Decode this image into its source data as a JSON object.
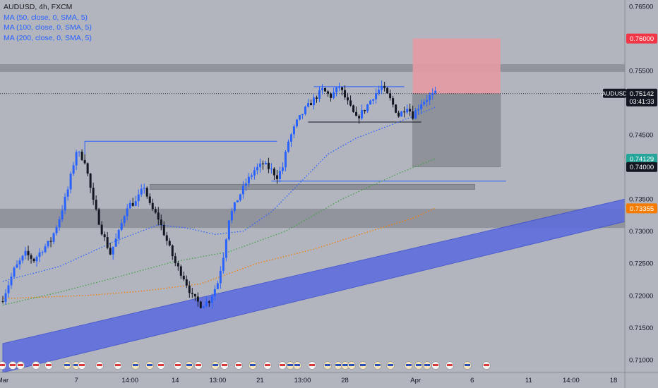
{
  "header": {
    "title": "AUDUSD, 4h, FXCM",
    "indicators": [
      "MA (50, close, 0, SMA, 5)",
      "MA (100, close, 0, SMA, 5)",
      "MA (200, close, 0, SMA, 5)"
    ]
  },
  "colors": {
    "background": "#b2b5be",
    "up_candle": "#2962ff",
    "down_candle": "#131722",
    "ma50": "#2962ff",
    "ma100": "#43a047",
    "ma200": "#f57c00",
    "channel": "#5b6be0",
    "stop_zone": "#e59aa3",
    "target_zone": "#8f9299",
    "zone_band": "#8d9098",
    "axis_text": "#131722"
  },
  "chart_data": {
    "type": "candlestick",
    "symbol": "AUDUSD",
    "interval": "4h",
    "source": "FXCM",
    "ylim": [
      0.708,
      0.766
    ],
    "y_ticks": [
      "0.76500",
      "0.76000",
      "0.75500",
      "0.75000",
      "0.74500",
      "0.74000",
      "0.73500",
      "0.73000",
      "0.72500",
      "0.72000",
      "0.71500",
      "0.71000"
    ],
    "x_ticks": [
      "Mar",
      "7",
      "14:00",
      "14",
      "13:00",
      "21",
      "13:00",
      "28",
      "Apr",
      "6",
      "11",
      "14:00",
      "18"
    ],
    "x_tick_index": [
      0,
      26,
      45,
      61,
      76,
      91,
      106,
      121,
      146,
      166,
      186,
      201,
      216
    ],
    "bars_total": 220,
    "current_price": "0.75142",
    "countdown": "03:41:33",
    "price_labels": [
      {
        "text": "0.76000",
        "value": 0.76,
        "bg": "#f23645"
      },
      {
        "text": "0.74129",
        "value": 0.74129,
        "bg": "#26a69a"
      },
      {
        "text": "0.74000",
        "value": 0.74,
        "bg": "#131722"
      },
      {
        "text": "0.73355",
        "value": 0.73355,
        "bg": "#f57c00"
      }
    ],
    "close_path": [
      [
        0,
        0.7195
      ],
      [
        4,
        0.724
      ],
      [
        8,
        0.7265
      ],
      [
        11,
        0.7255
      ],
      [
        14,
        0.7272
      ],
      [
        17,
        0.7285
      ],
      [
        20,
        0.732
      ],
      [
        23,
        0.7365
      ],
      [
        26,
        0.7425
      ],
      [
        29,
        0.741
      ],
      [
        32,
        0.7345
      ],
      [
        35,
        0.73
      ],
      [
        38,
        0.7265
      ],
      [
        41,
        0.7298
      ],
      [
        44,
        0.734
      ],
      [
        47,
        0.7345
      ],
      [
        50,
        0.737
      ],
      [
        52,
        0.734
      ],
      [
        55,
        0.732
      ],
      [
        58,
        0.7285
      ],
      [
        61,
        0.725
      ],
      [
        64,
        0.7228
      ],
      [
        67,
        0.7198
      ],
      [
        70,
        0.7185
      ],
      [
        73,
        0.7192
      ],
      [
        76,
        0.722
      ],
      [
        78,
        0.7262
      ],
      [
        80,
        0.732
      ],
      [
        83,
        0.735
      ],
      [
        86,
        0.7375
      ],
      [
        89,
        0.7395
      ],
      [
        92,
        0.7405
      ],
      [
        95,
        0.7395
      ],
      [
        97,
        0.7385
      ],
      [
        99,
        0.74
      ],
      [
        101,
        0.744
      ],
      [
        104,
        0.747
      ],
      [
        107,
        0.749
      ],
      [
        110,
        0.7505
      ],
      [
        113,
        0.752
      ],
      [
        116,
        0.751
      ],
      [
        119,
        0.7525
      ],
      [
        122,
        0.75
      ],
      [
        125,
        0.7475
      ],
      [
        128,
        0.749
      ],
      [
        131,
        0.751
      ],
      [
        134,
        0.7525
      ],
      [
        137,
        0.7505
      ],
      [
        140,
        0.748
      ],
      [
        143,
        0.7495
      ],
      [
        145,
        0.748
      ],
      [
        148,
        0.75
      ],
      [
        151,
        0.751
      ],
      [
        153,
        0.7514
      ]
    ],
    "ma50": [
      [
        0,
        0.7222
      ],
      [
        20,
        0.7245
      ],
      [
        40,
        0.7285
      ],
      [
        55,
        0.731
      ],
      [
        65,
        0.7305
      ],
      [
        75,
        0.7295
      ],
      [
        85,
        0.73
      ],
      [
        95,
        0.733
      ],
      [
        105,
        0.7375
      ],
      [
        115,
        0.742
      ],
      [
        125,
        0.7445
      ],
      [
        140,
        0.747
      ],
      [
        153,
        0.7493
      ]
    ],
    "ma100": [
      [
        0,
        0.7185
      ],
      [
        20,
        0.7205
      ],
      [
        40,
        0.7228
      ],
      [
        60,
        0.7252
      ],
      [
        80,
        0.7268
      ],
      [
        100,
        0.73
      ],
      [
        120,
        0.735
      ],
      [
        140,
        0.739
      ],
      [
        153,
        0.7413
      ]
    ],
    "ma200": [
      [
        0,
        0.7195
      ],
      [
        30,
        0.72
      ],
      [
        50,
        0.7207
      ],
      [
        70,
        0.7218
      ],
      [
        90,
        0.725
      ],
      [
        110,
        0.7272
      ],
      [
        130,
        0.73
      ],
      [
        145,
        0.732
      ],
      [
        153,
        0.7336
      ]
    ],
    "zones": [
      {
        "from": 0.7548,
        "to": 0.756
      },
      {
        "from": 0.7305,
        "to": 0.7335
      }
    ],
    "support_boxes": [
      {
        "x0": 52,
        "x1": 167,
        "from": 0.7365,
        "to": 0.7373
      }
    ],
    "position": {
      "x0": 145,
      "x1": 176,
      "entry": 0.7514,
      "stop": 0.76,
      "target": 0.74
    },
    "lines": [
      {
        "x0": 29,
        "x1": 97,
        "y0": 0.744,
        "y1": 0.744
      },
      {
        "x0": 29,
        "x1": 29,
        "y0": 0.744,
        "y1": 0.742
      },
      {
        "x0": 95,
        "x1": 178,
        "y0": 0.7378,
        "y1": 0.7378
      },
      {
        "x0": 110,
        "x1": 142,
        "y0": 0.7525,
        "y1": 0.7525
      },
      {
        "x0": 108,
        "x1": 148,
        "y0": 0.747,
        "y1": 0.747
      }
    ],
    "channel": {
      "upper": [
        [
          0,
          0.7125
        ],
        [
          220,
          0.735
        ]
      ],
      "lower": [
        [
          0,
          0.708
        ],
        [
          220,
          0.7315
        ]
      ]
    }
  }
}
